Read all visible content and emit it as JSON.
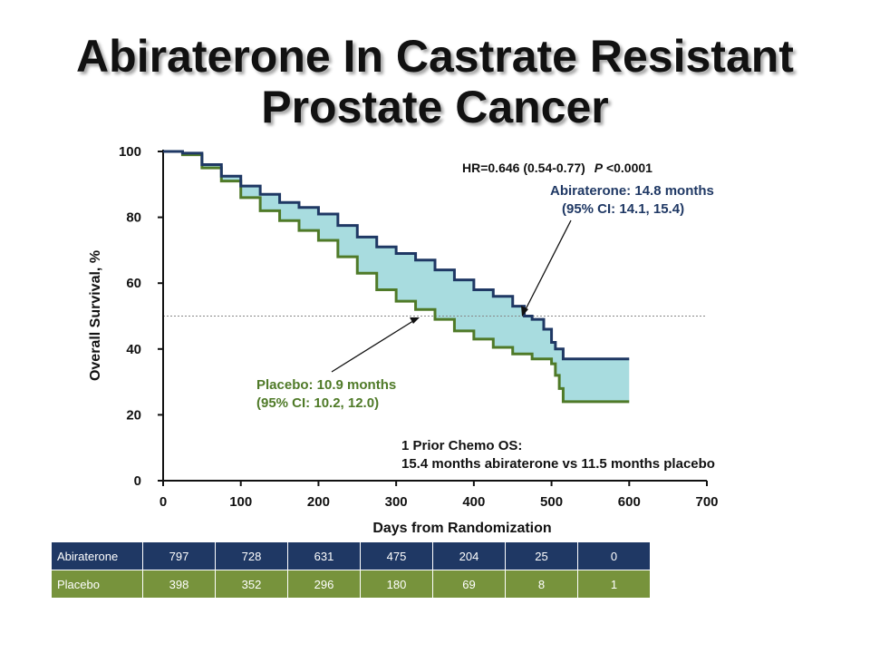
{
  "title_line1": "Abiraterone In Castrate Resistant",
  "title_line2": "Prostate Cancer",
  "colors": {
    "abiraterone": "#1f3864",
    "placebo": "#4f7a28",
    "fill": "#a8dcdf",
    "table_abiraterone": "#1f3864",
    "table_placebo": "#77933c"
  },
  "chart_data": {
    "type": "line",
    "xlabel": "Days from Randomization",
    "ylabel": "Overall Survival, %",
    "xlim": [
      0,
      700
    ],
    "ylim": [
      0,
      100
    ],
    "x_ticks": [
      "0",
      "100",
      "200",
      "300",
      "400",
      "500",
      "600",
      "700"
    ],
    "y_ticks": [
      "0",
      "20",
      "40",
      "60",
      "80",
      "100"
    ],
    "reference_line_y": 50,
    "series": [
      {
        "name": "Abiraterone",
        "x": [
          0,
          25,
          50,
          75,
          100,
          125,
          150,
          175,
          200,
          225,
          250,
          275,
          300,
          325,
          350,
          375,
          400,
          425,
          450,
          465,
          475,
          490,
          500,
          505,
          515,
          600
        ],
        "y": [
          100,
          99.5,
          96,
          92.5,
          89.5,
          87,
          84.5,
          83,
          81,
          77.5,
          74,
          71,
          69,
          67,
          64,
          61,
          58,
          56,
          53,
          50,
          49,
          46,
          42,
          40,
          37,
          37
        ]
      },
      {
        "name": "Placebo",
        "x": [
          0,
          25,
          50,
          75,
          100,
          125,
          150,
          175,
          200,
          225,
          250,
          275,
          300,
          325,
          350,
          375,
          400,
          425,
          450,
          475,
          500,
          505,
          510,
          515,
          600
        ],
        "y": [
          100,
          99,
          95,
          91,
          86,
          82,
          79,
          76,
          73,
          68,
          63,
          58,
          54.5,
          52,
          49,
          45.5,
          43,
          40.5,
          38.5,
          37,
          35.5,
          32,
          28,
          24,
          24
        ]
      }
    ],
    "annotations": {
      "hr_text": "HR=0.646 (0.54-0.77)",
      "p_label": "P",
      "p_value": " <0.0001",
      "abi_median_line1": "Abiraterone: 14.8 months",
      "abi_median_line2": "(95% CI: 14.1, 15.4)",
      "pla_median_line1": "Placebo: 10.9 months",
      "pla_median_line2": "(95% CI: 10.2, 12.0)",
      "prior_line1": "1 Prior Chemo OS:",
      "prior_line2": "15.4 months abiraterone vs 11.5 months placebo"
    }
  },
  "risk_table": {
    "rows": [
      {
        "label": "Abiraterone",
        "values": [
          "797",
          "728",
          "631",
          "475",
          "204",
          "25",
          "0"
        ]
      },
      {
        "label": "Placebo",
        "values": [
          "398",
          "352",
          "296",
          "180",
          "69",
          "8",
          "1"
        ]
      }
    ]
  }
}
